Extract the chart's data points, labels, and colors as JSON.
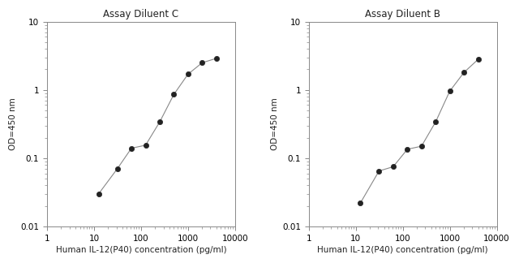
{
  "panel_C": {
    "title": "Assay Diluent C",
    "x": [
      12.5,
      31.25,
      62.5,
      125,
      250,
      500,
      1000,
      2000,
      4000
    ],
    "y": [
      0.03,
      0.07,
      0.14,
      0.155,
      0.34,
      0.86,
      1.7,
      2.5,
      2.9
    ]
  },
  "panel_B": {
    "title": "Assay Diluent B",
    "x": [
      12.5,
      31.25,
      62.5,
      125,
      250,
      500,
      1000,
      2000,
      4000
    ],
    "y": [
      0.022,
      0.065,
      0.075,
      0.135,
      0.15,
      0.34,
      0.96,
      1.8,
      2.8
    ]
  },
  "xlabel": "Human IL-12(P40) concentration (pg/ml)",
  "ylabel": "OD=450 nm",
  "xlim": [
    1,
    10000
  ],
  "ylim": [
    0.01,
    10
  ],
  "xticks": [
    1,
    10,
    100,
    1000,
    10000
  ],
  "yticks": [
    0.01,
    0.1,
    1,
    10
  ],
  "line_color": "#888888",
  "marker_color": "#222222",
  "bg_color": "#ffffff"
}
